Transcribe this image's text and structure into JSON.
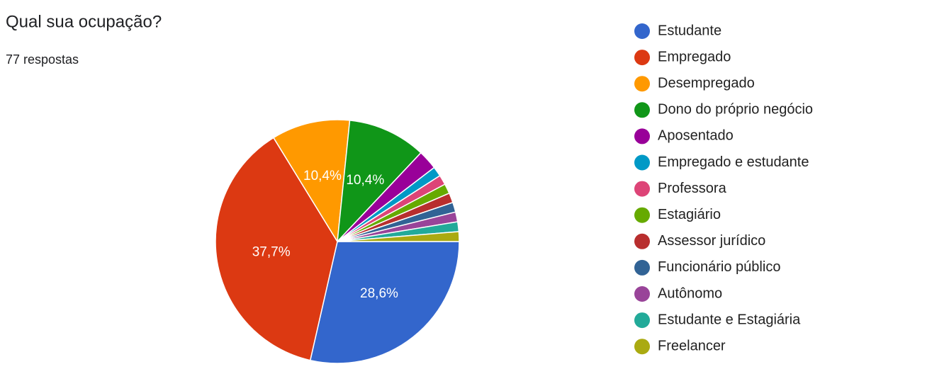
{
  "chart_data": {
    "type": "pie",
    "title": "Qual sua ocupação?",
    "subtitle": "77 respostas",
    "categories": [
      "Estudante",
      "Empregado",
      "Desempregado",
      "Dono do próprio negócio",
      "Aposentado",
      "Empregado e estudante",
      "Professora",
      "Estagiário",
      "Assessor jurídico",
      "Funcionário público",
      "Autônomo",
      "Estudante e Estagiária",
      "Freelancer"
    ],
    "values": [
      28.6,
      37.7,
      10.4,
      10.4,
      2.6,
      1.3,
      1.3,
      1.3,
      1.3,
      1.3,
      1.3,
      1.3,
      1.3
    ],
    "value_labels": [
      "28,6%",
      "37,7%",
      "10,4%",
      "10,4%",
      null,
      null,
      null,
      null,
      null,
      null,
      null,
      null,
      null
    ],
    "colors": [
      "#3366cc",
      "#dc3912",
      "#ff9900",
      "#109618",
      "#990099",
      "#0099c6",
      "#dd4477",
      "#66aa00",
      "#b82e2e",
      "#316395",
      "#994499",
      "#22aa99",
      "#aaaa11"
    ],
    "legend": "right"
  }
}
